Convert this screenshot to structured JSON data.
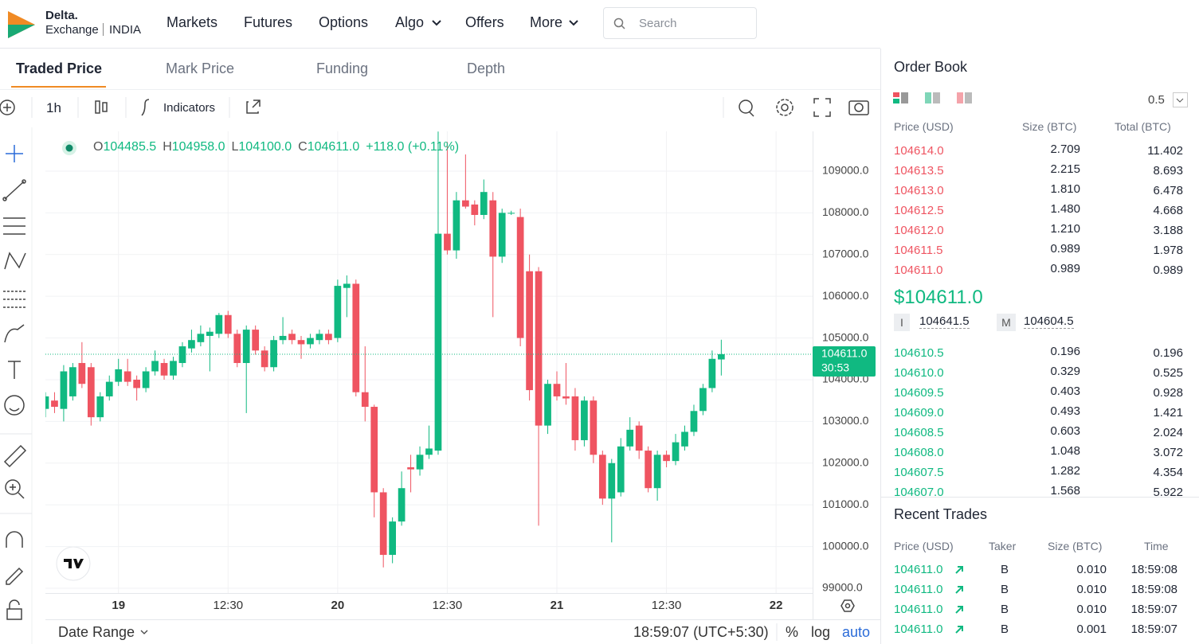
{
  "nav": {
    "logo": [
      "Delta.",
      "Exchange",
      "INDIA"
    ],
    "menu": [
      "Markets",
      "Futures",
      "Options",
      "Algo",
      "Offers",
      "More"
    ],
    "search": "Search"
  },
  "tabs": [
    "Traded Price",
    "Mark Price",
    "Funding",
    "Depth"
  ],
  "toolbar": {
    "interval": "1h",
    "indicators": "Indicators"
  },
  "chart_data": {
    "type": "candlestick",
    "legend": {
      "items": [
        {
          "label": "O",
          "value": "104485.5"
        },
        {
          "label": "H",
          "value": "104958.0"
        },
        {
          "label": "L",
          "value": "104100.0"
        },
        {
          "label": "C",
          "value": "104611.0"
        }
      ],
      "change": "+118.0 (+0.11%)"
    },
    "categories": [
      null,
      null,
      null,
      null,
      null,
      null,
      null,
      null,
      "19",
      null,
      null,
      null,
      null,
      null,
      null,
      null,
      null,
      null,
      null,
      null,
      "12:30",
      null,
      null,
      null,
      null,
      null,
      null,
      null,
      null,
      null,
      null,
      null,
      "20",
      null,
      null,
      null,
      null,
      null,
      null,
      null,
      null,
      null,
      null,
      null,
      "12:30",
      null,
      null,
      null,
      null,
      null,
      null,
      null,
      null,
      null,
      null,
      null,
      "21",
      null,
      null,
      null,
      null,
      null,
      null,
      null,
      null,
      null,
      null,
      null,
      "12:30",
      null,
      null,
      null,
      null,
      null,
      null,
      null,
      null,
      null,
      null,
      null,
      "22",
      null,
      null,
      null
    ],
    "open": [
      103300,
      103500,
      103300,
      103600,
      104400,
      104300,
      103100,
      103600,
      103950,
      104200,
      104000,
      103800,
      104200,
      104400,
      104100,
      104400,
      104750,
      104900,
      105050,
      105100,
      105550,
      105100,
      104400,
      105200,
      104700,
      104300,
      104950,
      105100,
      104950,
      104850,
      104950,
      105100,
      105000,
      106200,
      106300,
      103700,
      103350,
      101300,
      99800,
      100600,
      101900,
      101850,
      102200,
      102300,
      107500,
      107100,
      108300,
      108200,
      107950,
      108300,
      106950,
      108000,
      107900,
      106600,
      106600,
      102900,
      103900,
      103600,
      103600,
      102550,
      103500,
      102200,
      101150,
      101300,
      102400,
      102900,
      102300,
      101400,
      102200,
      102050,
      102400,
      102750,
      103250,
      103800,
      104485.5,
      null,
      null,
      null,
      null,
      null,
      null,
      null,
      null,
      null
    ],
    "high": [
      103700,
      103700,
      104350,
      104400,
      104900,
      104400,
      103700,
      104100,
      104500,
      104500,
      104100,
      104300,
      104700,
      104500,
      104550,
      104900,
      105200,
      105300,
      105250,
      105600,
      105650,
      105200,
      105300,
      105300,
      104800,
      105050,
      105500,
      105200,
      105050,
      105100,
      105200,
      105200,
      106400,
      106500,
      106400,
      104800,
      103400,
      101400,
      100700,
      101800,
      102200,
      102400,
      102900,
      109950,
      109700,
      108500,
      109400,
      108300,
      108800,
      108500,
      108100,
      108050,
      108100,
      107000,
      106700,
      104000,
      104200,
      104400,
      103800,
      103600,
      103600,
      102300,
      102100,
      102600,
      103100,
      103000,
      102400,
      102300,
      102300,
      102700,
      102900,
      103400,
      103900,
      104700,
      104958,
      null,
      null,
      null,
      null,
      null,
      null,
      null,
      null,
      null
    ],
    "low": [
      103100,
      103200,
      103000,
      103500,
      103800,
      102900,
      103000,
      103500,
      103850,
      103850,
      103500,
      103700,
      104100,
      104000,
      104000,
      104300,
      104650,
      104800,
      104200,
      105000,
      105000,
      104300,
      103200,
      104600,
      104200,
      104200,
      104850,
      104850,
      104500,
      104750,
      104850,
      104850,
      104900,
      105500,
      103600,
      103000,
      100700,
      99500,
      99600,
      100500,
      101300,
      101700,
      102100,
      102200,
      107000,
      106900,
      108100,
      107700,
      107850,
      105500,
      106800,
      107950,
      104800,
      103500,
      100500,
      102700,
      103500,
      103400,
      102300,
      102400,
      102000,
      101000,
      100100,
      101200,
      102300,
      102100,
      101300,
      101100,
      101900,
      101950,
      102300,
      102650,
      103150,
      103700,
      104100,
      null,
      null,
      null,
      null,
      null,
      null,
      null,
      null,
      null
    ],
    "close": [
      103600,
      103350,
      104200,
      104300,
      103900,
      103100,
      103600,
      103950,
      104250,
      103950,
      103800,
      104200,
      104450,
      104100,
      104450,
      104800,
      104950,
      105100,
      105150,
      105550,
      105100,
      104400,
      105200,
      104700,
      104300,
      104950,
      105050,
      104950,
      104850,
      105000,
      105100,
      104950,
      106250,
      106300,
      103700,
      103350,
      101300,
      99800,
      100600,
      101400,
      101850,
      102200,
      102350,
      107500,
      107100,
      108300,
      108150,
      107950,
      108500,
      106950,
      108000,
      108000,
      105000,
      103750,
      102900,
      103900,
      103600,
      103550,
      102550,
      103500,
      102200,
      101150,
      102000,
      102400,
      102800,
      102300,
      101400,
      102200,
      102050,
      102500,
      102750,
      103250,
      103800,
      104500,
      104611,
      null,
      null,
      null,
      null,
      null,
      null,
      null,
      null,
      null
    ],
    "up_color": "#10b981",
    "down_color": "#ef5461",
    "ylim": [
      98885,
      109954
    ],
    "yticks": [
      {
        "value": 99000,
        "label": "99000.0"
      },
      {
        "value": 100000,
        "label": "100000.0"
      },
      {
        "value": 101000,
        "label": "101000.0"
      },
      {
        "value": 102000,
        "label": "102000.0"
      },
      {
        "value": 103000,
        "label": "103000.0"
      },
      {
        "value": 104000,
        "label": "104000.0"
      },
      {
        "value": 105000,
        "label": "105000.0"
      },
      {
        "value": 106000,
        "label": "106000.0"
      },
      {
        "value": 107000,
        "label": "107000.0"
      },
      {
        "value": 108000,
        "label": "108000.0"
      },
      {
        "value": 109000,
        "label": "109000.0"
      }
    ],
    "grid": true,
    "last_price": {
      "value": 104611,
      "label": "104611.0"
    },
    "countdown": "30:53"
  },
  "footer": {
    "date_range": "Date Range",
    "time": "18:59:07 (UTC+5:30)",
    "percent": "%",
    "log": "log",
    "auto": "auto"
  },
  "order_book": {
    "title": "Order Book",
    "step": "0.5",
    "columns": [
      "Price (USD)",
      "Size (BTC)",
      "Total (BTC)"
    ],
    "asks": [
      [
        "104614.0",
        "2.709",
        "11.402"
      ],
      [
        "104613.5",
        "2.215",
        "8.693"
      ],
      [
        "104613.0",
        "1.810",
        "6.478"
      ],
      [
        "104612.5",
        "1.480",
        "4.668"
      ],
      [
        "104612.0",
        "1.210",
        "3.188"
      ],
      [
        "104611.5",
        "0.989",
        "1.978"
      ],
      [
        "104611.0",
        "0.989",
        "0.989"
      ]
    ],
    "last_price": "$104611.0",
    "index_label": "I",
    "index_price": "104641.5",
    "mark_label": "M",
    "mark_price": "104604.5",
    "bids": [
      [
        "104610.5",
        "0.196",
        "0.196"
      ],
      [
        "104610.0",
        "0.329",
        "0.525"
      ],
      [
        "104609.5",
        "0.403",
        "0.928"
      ],
      [
        "104609.0",
        "0.493",
        "1.421"
      ],
      [
        "104608.5",
        "0.603",
        "2.024"
      ],
      [
        "104608.0",
        "1.048",
        "3.072"
      ],
      [
        "104607.5",
        "1.282",
        "4.354"
      ],
      [
        "104607.0",
        "1.568",
        "5.922"
      ]
    ]
  },
  "recent_trades": {
    "title": "Recent Trades",
    "columns": [
      "Price (USD)",
      "Taker",
      "Size (BTC)",
      "Time"
    ],
    "rows": [
      [
        "104611.0",
        "B",
        "0.010",
        "18:59:08"
      ],
      [
        "104611.0",
        "B",
        "0.010",
        "18:59:08"
      ],
      [
        "104611.0",
        "B",
        "0.010",
        "18:59:07"
      ],
      [
        "104611.0",
        "B",
        "0.001",
        "18:59:07"
      ]
    ]
  }
}
